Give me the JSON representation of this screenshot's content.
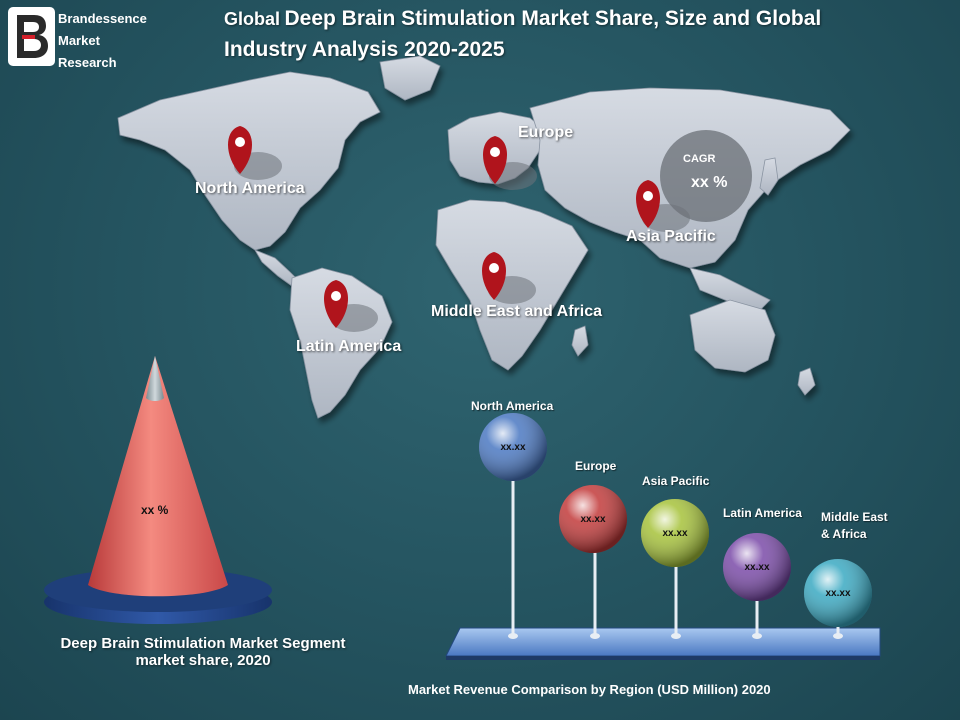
{
  "brand": {
    "line1": "Brandessence",
    "line2": "Market",
    "line3": "Research"
  },
  "title": {
    "prefix": "Global",
    "main": "Deep Brain Stimulation  Market Share, Size and Global Industry Analysis 2020-2025"
  },
  "map": {
    "regions": [
      "North America",
      "Europe",
      "Asia Pacific",
      "Middle East and Africa",
      "Latin America"
    ],
    "cagr_label": "CAGR",
    "cagr_value": "xx %"
  },
  "cone": {
    "value": "xx %",
    "caption_line1": "Deep Brain Stimulation  Market Segment",
    "caption_line2": "market share, 2020"
  },
  "bubbles": [
    {
      "title": "North America",
      "value": "xx.xx",
      "color": "#4a78c2"
    },
    {
      "title": "Europe",
      "value": "xx.xx",
      "color": "#c23a3a"
    },
    {
      "title": "Asia Pacific",
      "value": "xx.xx",
      "color": "#a6c23a"
    },
    {
      "title": "Latin America",
      "value": "xx.xx",
      "color": "#7a4aa8"
    },
    {
      "title_line1": "Middle East",
      "title_line2": "& Africa",
      "value": "xx.xx",
      "color": "#3aa9c2"
    }
  ],
  "bar_caption": "Market Revenue Comparison by Region (USD Million) 2020"
}
